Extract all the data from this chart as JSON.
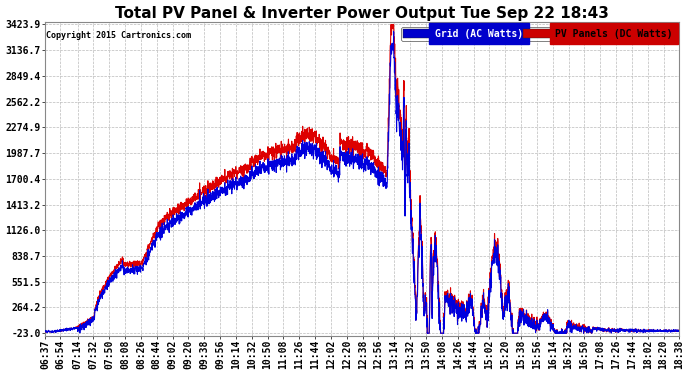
{
  "title": "Total PV Panel & Inverter Power Output Tue Sep 22 18:43",
  "copyright": "Copyright 2015 Cartronics.com",
  "legend_grid_label": "Grid (AC Watts)",
  "legend_pv_label": "PV Panels (DC Watts)",
  "legend_grid_bg": "#0000cc",
  "legend_pv_bg": "#cc0000",
  "grid_color": "#0000dd",
  "pv_color": "#dd0000",
  "bg_color": "#ffffff",
  "plot_bg": "#ffffff",
  "grid_line_color": "#bbbbbb",
  "yticks": [
    3423.9,
    3136.7,
    2849.4,
    2562.2,
    2274.9,
    1987.7,
    1700.4,
    1413.2,
    1126.0,
    838.7,
    551.5,
    264.2,
    -23.0
  ],
  "ymin": -23.0,
  "ymax": 3423.9,
  "title_fontsize": 11,
  "tick_fontsize": 7,
  "xtick_labels": [
    "06:37",
    "06:54",
    "07:14",
    "07:32",
    "07:50",
    "08:08",
    "08:26",
    "08:44",
    "09:02",
    "09:20",
    "09:38",
    "09:56",
    "10:14",
    "10:32",
    "10:50",
    "11:08",
    "11:26",
    "11:44",
    "12:02",
    "12:20",
    "12:38",
    "12:56",
    "13:14",
    "13:32",
    "13:50",
    "14:08",
    "14:26",
    "14:44",
    "15:02",
    "15:20",
    "15:38",
    "15:56",
    "16:14",
    "16:32",
    "16:50",
    "17:08",
    "17:26",
    "17:44",
    "18:02",
    "18:20",
    "18:38"
  ]
}
